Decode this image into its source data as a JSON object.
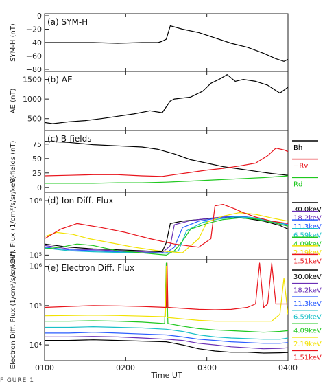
{
  "figure": {
    "caption": "FIGURE 1",
    "xlabel": "Time UT",
    "x_ticks": [
      "0100",
      "0200",
      "0300",
      "0400"
    ]
  },
  "chart_data": [
    {
      "type": "line",
      "panel_label": "(a) SYM-H",
      "ylabel": "SYM-H (nT)",
      "x_unit": "hours UT",
      "ylim": [
        -80,
        0
      ],
      "yticks": [
        "0",
        "−20",
        "−40",
        "−60",
        "−80"
      ],
      "tick_values": [
        0,
        -20,
        -40,
        -60,
        -80
      ],
      "log": false,
      "series": [
        {
          "color": "#000000",
          "x": [
            1.0,
            1.3,
            1.6,
            1.9,
            2.2,
            2.4,
            2.45,
            2.5,
            2.55,
            2.7,
            2.9,
            3.1,
            3.3,
            3.5,
            3.7,
            3.85,
            3.95,
            4.0
          ],
          "y": [
            -40,
            -40,
            -40,
            -41,
            -40,
            -40,
            -38,
            -35,
            -15,
            -20,
            -25,
            -33,
            -41,
            -47,
            -56,
            -64,
            -68,
            -65
          ]
        }
      ]
    },
    {
      "type": "line",
      "panel_label": "(b) AE",
      "ylabel": "AE (nT)",
      "x_unit": "hours UT",
      "ylim": [
        250,
        1650
      ],
      "yticks": [
        "500",
        "1000",
        "1500"
      ],
      "tick_values": [
        500,
        1000,
        1500
      ],
      "log": false,
      "series": [
        {
          "color": "#000000",
          "x": [
            1.0,
            1.1,
            1.3,
            1.5,
            1.7,
            1.9,
            2.1,
            2.3,
            2.45,
            2.55,
            2.6,
            2.8,
            2.95,
            3.05,
            3.15,
            3.25,
            3.35,
            3.45,
            3.6,
            3.75,
            3.9,
            4.0
          ],
          "y": [
            400,
            370,
            420,
            450,
            500,
            560,
            620,
            700,
            650,
            950,
            1000,
            1050,
            1200,
            1400,
            1500,
            1620,
            1450,
            1500,
            1450,
            1350,
            1150,
            1300
          ]
        }
      ]
    },
    {
      "type": "line",
      "panel_label": "(c) B-fields",
      "ylabel": "B-fields (nT)",
      "x_unit": "hours UT",
      "ylim": [
        -5,
        95
      ],
      "yticks": [
        "0",
        "25",
        "50",
        "75"
      ],
      "tick_values": [
        0,
        25,
        50,
        75
      ],
      "log": false,
      "series": [
        {
          "name": "Bh",
          "color": "#000000",
          "x": [
            1.0,
            1.3,
            1.6,
            1.9,
            2.2,
            2.4,
            2.6,
            2.8,
            3.0,
            3.2,
            3.4,
            3.6,
            3.8,
            4.0
          ],
          "y": [
            80,
            78,
            74,
            72,
            70,
            66,
            58,
            48,
            42,
            36,
            32,
            28,
            24,
            21
          ]
        },
        {
          "name": "−Rv",
          "color": "#e8141c",
          "x": [
            1.0,
            1.3,
            1.6,
            1.9,
            2.2,
            2.45,
            2.6,
            2.8,
            3.0,
            3.2,
            3.4,
            3.6,
            3.75,
            3.85,
            3.95,
            4.0
          ],
          "y": [
            20,
            21,
            22,
            22,
            20,
            19,
            22,
            26,
            30,
            33,
            37,
            42,
            55,
            68,
            65,
            62
          ]
        },
        {
          "name": "Rd",
          "color": "#1fc81f",
          "x": [
            1.0,
            1.3,
            1.6,
            1.9,
            2.2,
            2.5,
            2.8,
            3.1,
            3.4,
            3.7,
            4.0
          ],
          "y": [
            7,
            7,
            7,
            8,
            8,
            9,
            11,
            13,
            15,
            17,
            20
          ]
        }
      ]
    },
    {
      "type": "line",
      "panel_label": "(d) Ion Diff. Flux",
      "ylabel": "Ion Diff. Flux (1/cm²/s/sr/keV)",
      "x_unit": "hours UT",
      "log": true,
      "ylim": [
        90000,
        1300000
      ],
      "yticks": [
        "10⁵",
        "10⁶"
      ],
      "tick_values": [
        100000,
        1000000
      ],
      "series": [
        {
          "name": "30.0keV",
          "color": "#000000",
          "x": [
            1.0,
            1.3,
            1.6,
            1.9,
            2.2,
            2.45,
            2.5,
            2.55,
            2.7,
            2.9,
            3.1,
            3.3,
            3.5,
            3.7,
            3.9,
            4.0
          ],
          "y": [
            160000,
            140000,
            130000,
            125000,
            120000,
            115000,
            170000,
            380000,
            420000,
            450000,
            480000,
            500000,
            470000,
            420000,
            350000,
            300000
          ]
        },
        {
          "name": "18.2keV",
          "color": "#6a2fb5",
          "x": [
            1.0,
            1.3,
            1.6,
            1.9,
            2.2,
            2.45,
            2.55,
            2.6,
            2.8,
            3.0,
            3.2,
            3.4,
            3.6,
            3.8,
            4.0
          ],
          "y": [
            150000,
            130000,
            125000,
            120000,
            115000,
            110000,
            150000,
            360000,
            430000,
            470000,
            500000,
            520000,
            480000,
            400000,
            340000
          ]
        },
        {
          "name": "11.3keV",
          "color": "#2a5cff",
          "x": [
            1.0,
            1.3,
            1.6,
            1.9,
            2.2,
            2.5,
            2.6,
            2.7,
            2.9,
            3.1,
            3.3,
            3.5,
            3.7,
            3.9,
            4.0
          ],
          "y": [
            140000,
            125000,
            120000,
            115000,
            110000,
            110000,
            140000,
            320000,
            420000,
            470000,
            510000,
            500000,
            450000,
            390000,
            360000
          ]
        },
        {
          "name": "6.59keV",
          "color": "#18c0c8",
          "x": [
            1.0,
            1.3,
            1.6,
            1.9,
            2.2,
            2.5,
            2.65,
            2.75,
            2.95,
            3.15,
            3.35,
            3.55,
            3.75,
            3.95,
            4.0
          ],
          "y": [
            135000,
            120000,
            115000,
            112000,
            110000,
            108000,
            120000,
            280000,
            400000,
            460000,
            500000,
            490000,
            430000,
            370000,
            350000
          ]
        },
        {
          "name": "4.09keV",
          "color": "#1fc81f",
          "x": [
            1.0,
            1.2,
            1.4,
            1.6,
            1.9,
            2.2,
            2.5,
            2.6,
            2.7,
            2.8,
            3.0,
            3.2,
            3.4,
            3.6,
            3.8,
            4.0
          ],
          "y": [
            130000,
            140000,
            160000,
            150000,
            120000,
            110000,
            100000,
            120000,
            180000,
            300000,
            380000,
            450000,
            480000,
            460000,
            400000,
            340000
          ]
        },
        {
          "name": "2.19keV",
          "color": "#f2e200",
          "x": [
            1.0,
            1.15,
            1.35,
            1.55,
            1.8,
            2.1,
            2.4,
            2.7,
            2.9,
            3.0,
            3.2,
            3.4,
            3.6,
            3.8,
            4.0
          ],
          "y": [
            220000,
            260000,
            240000,
            200000,
            170000,
            140000,
            120000,
            110000,
            200000,
            400000,
            520000,
            600000,
            560000,
            480000,
            420000
          ]
        },
        {
          "name": "1.51keV",
          "color": "#e8141c",
          "x": [
            1.0,
            1.2,
            1.4,
            1.7,
            2.0,
            2.3,
            2.6,
            2.9,
            3.05,
            3.1,
            3.2,
            3.35,
            3.45,
            3.6,
            3.8,
            4.0
          ],
          "y": [
            200000,
            300000,
            380000,
            320000,
            260000,
            200000,
            160000,
            140000,
            200000,
            800000,
            850000,
            700000,
            600000,
            500000,
            420000,
            380000
          ]
        }
      ]
    },
    {
      "type": "line",
      "panel_label": "(e) Electron Diff. Flux",
      "ylabel": "Electron Diff. Flux (1/cm²/s/sr/keV)",
      "x_unit": "hours UT",
      "log": true,
      "ylim": [
        4500,
        1300000
      ],
      "yticks": [
        "10⁴",
        "10⁵",
        "10⁶"
      ],
      "tick_values": [
        10000,
        100000,
        1000000
      ],
      "series": [
        {
          "name": "30.0keV",
          "color": "#000000",
          "x": [
            1.0,
            1.3,
            1.6,
            1.9,
            2.2,
            2.5,
            2.7,
            2.9,
            3.1,
            3.3,
            3.5,
            3.7,
            3.9,
            4.0
          ],
          "y": [
            13000,
            13000,
            13500,
            13000,
            12500,
            12000,
            10000,
            8000,
            7000,
            6500,
            6500,
            6200,
            6300,
            6400
          ]
        },
        {
          "name": "18.2keV",
          "color": "#6a2fb5",
          "x": [
            1.0,
            1.3,
            1.6,
            1.9,
            2.2,
            2.5,
            2.7,
            2.9,
            3.1,
            3.3,
            3.5,
            3.7,
            3.9,
            4.0
          ],
          "y": [
            16000,
            16000,
            16500,
            16000,
            15000,
            14000,
            13000,
            11000,
            10000,
            9000,
            8500,
            8000,
            8200,
            8500
          ]
        },
        {
          "name": "11.3keV",
          "color": "#2a5cff",
          "x": [
            1.0,
            1.3,
            1.6,
            1.9,
            2.2,
            2.5,
            2.7,
            2.9,
            3.1,
            3.3,
            3.5,
            3.7,
            3.9,
            4.0
          ],
          "y": [
            20000,
            20000,
            21000,
            20000,
            19000,
            18000,
            16000,
            14000,
            13000,
            12000,
            11500,
            11000,
            11000,
            11500
          ]
        },
        {
          "name": "6.59keV",
          "color": "#18c0c8",
          "x": [
            1.0,
            1.3,
            1.6,
            1.9,
            2.2,
            2.5,
            2.7,
            2.9,
            3.1,
            3.3,
            3.5,
            3.7,
            3.9,
            4.0
          ],
          "y": [
            28000,
            28000,
            29000,
            28000,
            27000,
            25000,
            22000,
            18000,
            16000,
            15000,
            14500,
            14000,
            14000,
            15000
          ]
        },
        {
          "name": "4.09keV",
          "color": "#1fc81f",
          "x": [
            1.0,
            1.3,
            1.6,
            1.9,
            2.2,
            2.48,
            2.5,
            2.52,
            2.7,
            2.9,
            3.1,
            3.3,
            3.5,
            3.7,
            3.9,
            4.0
          ],
          "y": [
            40000,
            40000,
            41000,
            40000,
            38000,
            35000,
            1200000,
            35000,
            30000,
            26000,
            24000,
            23000,
            22000,
            21000,
            22000,
            23000
          ]
        },
        {
          "name": "2.19keV",
          "color": "#f2e200",
          "x": [
            1.0,
            1.3,
            1.6,
            1.9,
            2.2,
            2.49,
            2.5,
            2.51,
            2.7,
            2.9,
            3.1,
            3.3,
            3.5,
            3.7,
            3.8,
            3.9,
            3.95,
            4.0
          ],
          "y": [
            55000,
            56000,
            57000,
            56000,
            54000,
            52000,
            1000000,
            50000,
            46000,
            42000,
            40000,
            40000,
            40000,
            40000,
            40000,
            60000,
            500000,
            60000
          ]
        },
        {
          "name": "1.51keV",
          "color": "#e8141c",
          "x": [
            1.0,
            1.3,
            1.6,
            1.9,
            2.2,
            2.5,
            2.51,
            2.52,
            2.7,
            2.9,
            3.1,
            3.3,
            3.5,
            3.6,
            3.65,
            3.7,
            3.75,
            3.8,
            3.85,
            4.0
          ],
          "y": [
            90000,
            95000,
            100000,
            98000,
            95000,
            90000,
            1200000,
            90000,
            85000,
            80000,
            78000,
            80000,
            90000,
            110000,
            1200000,
            90000,
            110000,
            1200000,
            110000,
            110000
          ]
        }
      ]
    }
  ]
}
